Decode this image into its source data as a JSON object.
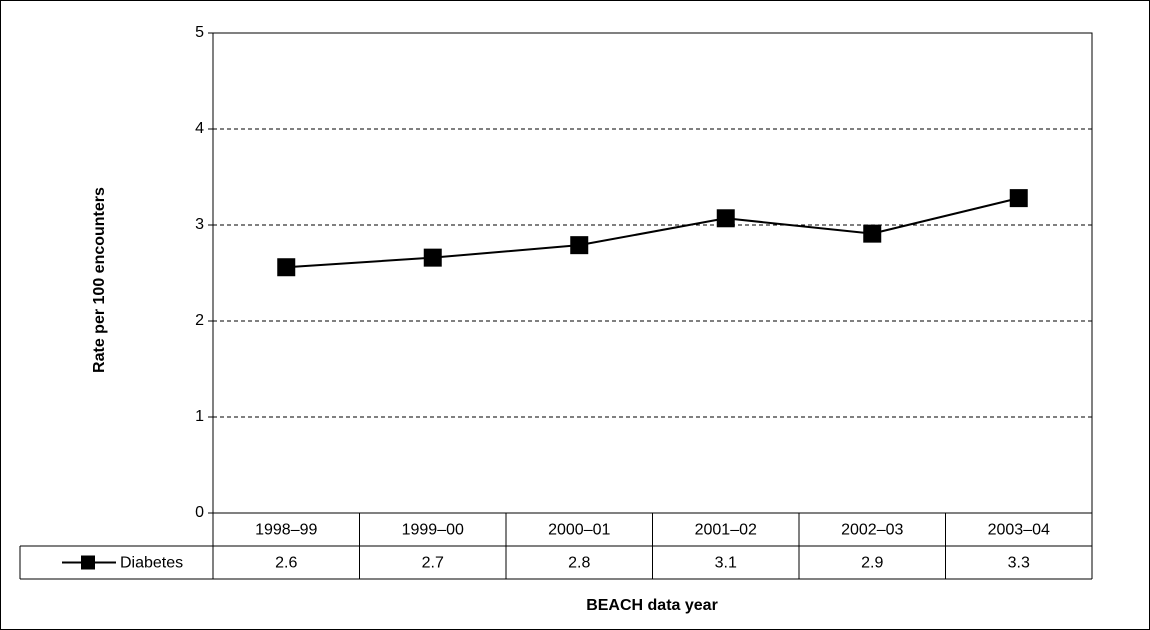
{
  "chart_data": {
    "type": "line",
    "y_label": "Rate per 100 encounters",
    "x_label": "BEACH data year",
    "categories": [
      "1998–99",
      "1999–00",
      "2000–01",
      "2001–02",
      "2002–03",
      "2003–04"
    ],
    "series": [
      {
        "name": "Diabetes",
        "color": "#000000",
        "values": [
          2.56,
          2.66,
          2.79,
          3.07,
          2.91,
          3.28
        ],
        "value_labels": [
          "2.6",
          "2.7",
          "2.8",
          "3.1",
          "2.9",
          "3.3"
        ]
      }
    ],
    "ylim": [
      0,
      5
    ],
    "yticks": [
      0,
      1,
      2,
      3,
      4,
      5
    ],
    "grid": true
  }
}
